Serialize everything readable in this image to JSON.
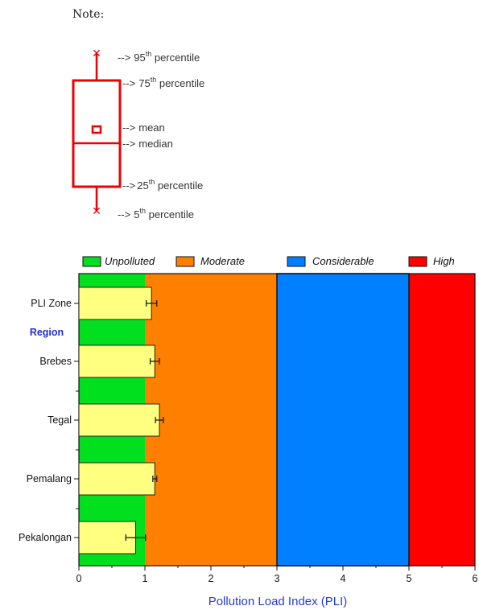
{
  "note": {
    "title": "Note:",
    "labels": {
      "p95": {
        "num": "95",
        "sup": "th",
        "text": " percentile"
      },
      "p75": {
        "num": "75",
        "sup": "th",
        "text": " percentile"
      },
      "mean": {
        "text": "mean"
      },
      "median": {
        "text": "median"
      },
      "p25": {
        "num": "25",
        "sup": "th",
        "text": " percentile"
      },
      "p5": {
        "num": "5",
        "sup": "th",
        "text": " percentile"
      }
    },
    "arrow": "-->"
  },
  "colors": {
    "unpolluted": "#00e01e",
    "moderate": "#ff8000",
    "considerable": "#0080ff",
    "high": "#ff0000",
    "bar": "#ffff80",
    "box": "#ee0000",
    "region": "#1f2fd6"
  },
  "chart_data": {
    "type": "bar",
    "orientation": "horizontal",
    "categories": [
      "PLI Zone",
      "Region",
      "Brebes",
      "Tegal",
      "Pemalang",
      "Pekalongan"
    ],
    "bars": [
      {
        "category": "PLI Zone",
        "value": 1.1,
        "error": 0.08
      },
      {
        "category": "Brebes",
        "value": 1.15,
        "error": 0.07
      },
      {
        "category": "Tegal",
        "value": 1.22,
        "error": 0.06
      },
      {
        "category": "Pemalang",
        "value": 1.15,
        "error": 0.03
      },
      {
        "category": "Pekalongan",
        "value": 0.86,
        "error": 0.15
      }
    ],
    "zones": [
      {
        "name": "Unpolluted",
        "from": 0,
        "to": 1
      },
      {
        "name": "Moderate",
        "from": 1,
        "to": 3
      },
      {
        "name": "Considerable",
        "from": 3,
        "to": 5
      },
      {
        "name": "High",
        "from": 5,
        "to": 6
      }
    ],
    "xlabel": "Pollution Load Index (PLI)",
    "xlim": [
      0,
      6
    ],
    "xticks": [
      "0",
      "1",
      "2",
      "3",
      "4",
      "5",
      "6"
    ],
    "legend_position": "top"
  }
}
